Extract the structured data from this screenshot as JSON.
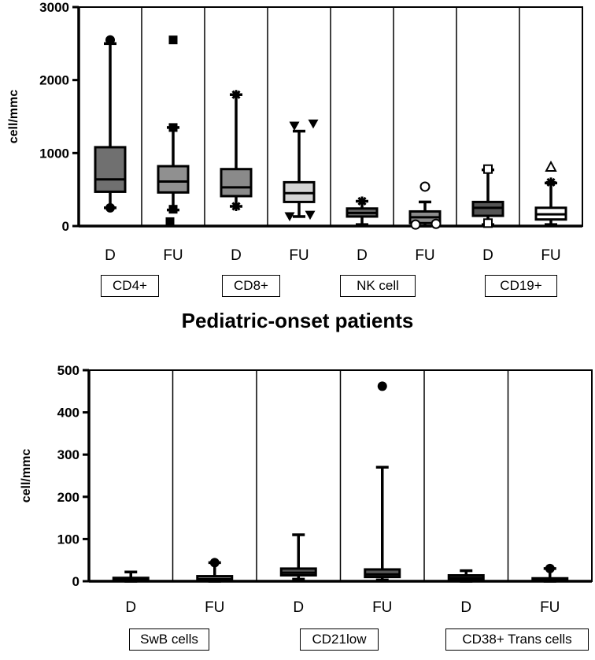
{
  "figure_title": "Pediatric-onset patients",
  "chart_data": [
    {
      "type": "box",
      "ylabel": "cell/mmc",
      "ylim": [
        0,
        3000
      ],
      "yticks": [
        0,
        1000,
        2000,
        3000
      ],
      "categories": [
        "D",
        "FU",
        "D",
        "FU",
        "D",
        "FU",
        "D",
        "FU"
      ],
      "groups": [
        "CD4+",
        "CD8+",
        "NK cell",
        "CD19+"
      ],
      "boxes": [
        {
          "min": 250,
          "q1": 470,
          "median": 640,
          "q3": 1080,
          "max": 2500,
          "fill": "#707070",
          "outliers": [
            {
              "value": 2550,
              "marker": "circle"
            },
            {
              "value": 250,
              "marker": "circle"
            }
          ]
        },
        {
          "min": 220,
          "q1": 460,
          "median": 610,
          "q3": 820,
          "max": 1350,
          "fill": "#909090",
          "outliers": [
            {
              "value": 2550,
              "marker": "square"
            },
            {
              "value": 1350,
              "marker": "square"
            },
            {
              "value": 230,
              "marker": "square"
            },
            {
              "value": 60,
              "marker": "square"
            }
          ]
        },
        {
          "min": 270,
          "q1": 410,
          "median": 530,
          "q3": 780,
          "max": 1800,
          "fill": "#8a8a8a",
          "outliers": [
            {
              "value": 1800,
              "marker": "star"
            },
            {
              "value": 270,
              "marker": "star"
            }
          ]
        },
        {
          "min": 130,
          "q1": 330,
          "median": 450,
          "q3": 600,
          "max": 1300,
          "fill": "#d4d4d4",
          "outliers": [
            {
              "value": 1370,
              "marker": "tri-down"
            },
            {
              "value": 1400,
              "marker": "tri-down"
            },
            {
              "value": 130,
              "marker": "tri-down"
            },
            {
              "value": 150,
              "marker": "tri-down"
            }
          ]
        },
        {
          "min": 20,
          "q1": 130,
          "median": 180,
          "q3": 240,
          "max": 340,
          "fill": "#6a6a6a",
          "outliers": [
            {
              "value": 340,
              "marker": "star"
            }
          ]
        },
        {
          "min": 0,
          "q1": 40,
          "median": 120,
          "q3": 200,
          "max": 330,
          "fill": "#8c8c8c",
          "outliers": [
            {
              "value": 540,
              "marker": "circle-open"
            },
            {
              "value": 20,
              "marker": "circle-open"
            },
            {
              "value": 30,
              "marker": "circle-open"
            }
          ]
        },
        {
          "min": 20,
          "q1": 140,
          "median": 250,
          "q3": 330,
          "max": 770,
          "fill": "#555555",
          "outliers": [
            {
              "value": 780,
              "marker": "square-open"
            },
            {
              "value": 40,
              "marker": "square-open"
            }
          ]
        },
        {
          "min": 20,
          "q1": 90,
          "median": 160,
          "q3": 250,
          "max": 590,
          "fill": "#ffffff",
          "outliers": [
            {
              "value": 810,
              "marker": "tri-open"
            },
            {
              "value": 600,
              "marker": "star"
            }
          ]
        }
      ]
    },
    {
      "type": "box",
      "ylabel": "cell/mmc",
      "ylim": [
        0,
        500
      ],
      "yticks": [
        0,
        100,
        200,
        300,
        400,
        500
      ],
      "categories": [
        "D",
        "FU",
        "D",
        "FU",
        "D",
        "FU"
      ],
      "groups": [
        "SwB cells",
        "CD21low",
        "CD38+ Trans cells"
      ],
      "boxes": [
        {
          "min": 0,
          "q1": 1,
          "median": 4,
          "q3": 8,
          "max": 22,
          "fill": "#707070",
          "outliers": []
        },
        {
          "min": 0,
          "q1": 2,
          "median": 5,
          "q3": 12,
          "max": 44,
          "fill": "#8a8a8a",
          "outliers": [
            {
              "value": 44,
              "marker": "circle"
            }
          ]
        },
        {
          "min": 5,
          "q1": 14,
          "median": 20,
          "q3": 30,
          "max": 110,
          "fill": "#555555",
          "outliers": []
        },
        {
          "min": 3,
          "q1": 10,
          "median": 16,
          "q3": 28,
          "max": 270,
          "fill": "#555555",
          "outliers": [
            {
              "value": 462,
              "marker": "circle"
            }
          ]
        },
        {
          "min": 0,
          "q1": 3,
          "median": 8,
          "q3": 14,
          "max": 25,
          "fill": "#707070",
          "outliers": []
        },
        {
          "min": 0,
          "q1": 1,
          "median": 3,
          "q3": 7,
          "max": 30,
          "fill": "#8a8a8a",
          "outliers": [
            {
              "value": 30,
              "marker": "circle"
            }
          ]
        }
      ]
    }
  ]
}
